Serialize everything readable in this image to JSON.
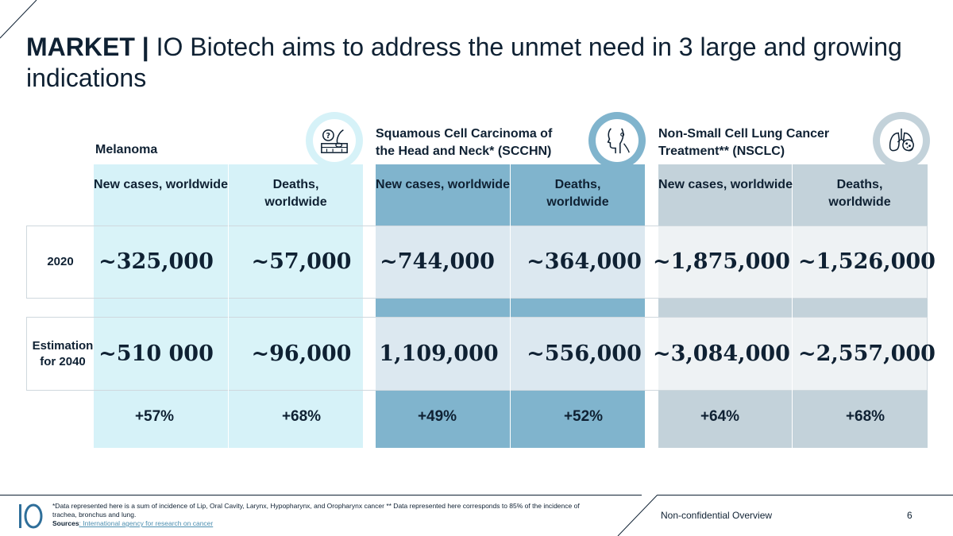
{
  "title": {
    "bold": "MARKET |",
    "text": " IO Biotech aims to address the unmet need in 3 large and growing indications"
  },
  "groups": [
    {
      "name": "Melanoma",
      "icon": "skin-lesion-icon"
    },
    {
      "name": "Squamous Cell Carcinoma of the Head and Neck* (SCCHN)",
      "icon": "head-neck-icon"
    },
    {
      "name": "Non-Small Cell Lung Cancer Treatment** (NSCLC)",
      "icon": "lungs-icon"
    }
  ],
  "columns": {
    "new_cases": "New cases, worldwide",
    "deaths": "Deaths, worldwide"
  },
  "rows": {
    "r2020": "2020",
    "r2040": "Estimation for 2040"
  },
  "values": {
    "melanoma": {
      "new_2020": "~325,000",
      "deaths_2020": "~57,000",
      "new_2040": "~510 000",
      "deaths_2040": "~96,000",
      "new_growth": "+57%",
      "deaths_growth": "+68%"
    },
    "scchn": {
      "new_2020": "~744,000",
      "deaths_2020": "~364,000",
      "new_2040": "1,109,000",
      "deaths_2040": "~556,000",
      "new_growth": "+49%",
      "deaths_growth": "+52%"
    },
    "nsclc": {
      "new_2020": "~1,875,000",
      "deaths_2020": "~1,526,000",
      "new_2040": "~3,084,000",
      "deaths_2040": "~2,557,000",
      "new_growth": "+64%",
      "deaths_growth": "+68%"
    }
  },
  "footer": {
    "note": "*Data represented here is a sum of incidence of Lip, Oral Cavity, Larynx, Hypopharynx, and Oropharynx cancer ** Data represented here corresponds to 85% of the incidence of trachea, bronchus and lung.",
    "sources_label": "Sources",
    "sources_link": ": International agency for research on cancer",
    "right": "Non-confidential Overview",
    "page": "6"
  },
  "colors": {
    "melanoma": "#d6f2f8",
    "scchn": "#80b4cd",
    "nsclc": "#c3d2da",
    "text": "#0f2133"
  }
}
